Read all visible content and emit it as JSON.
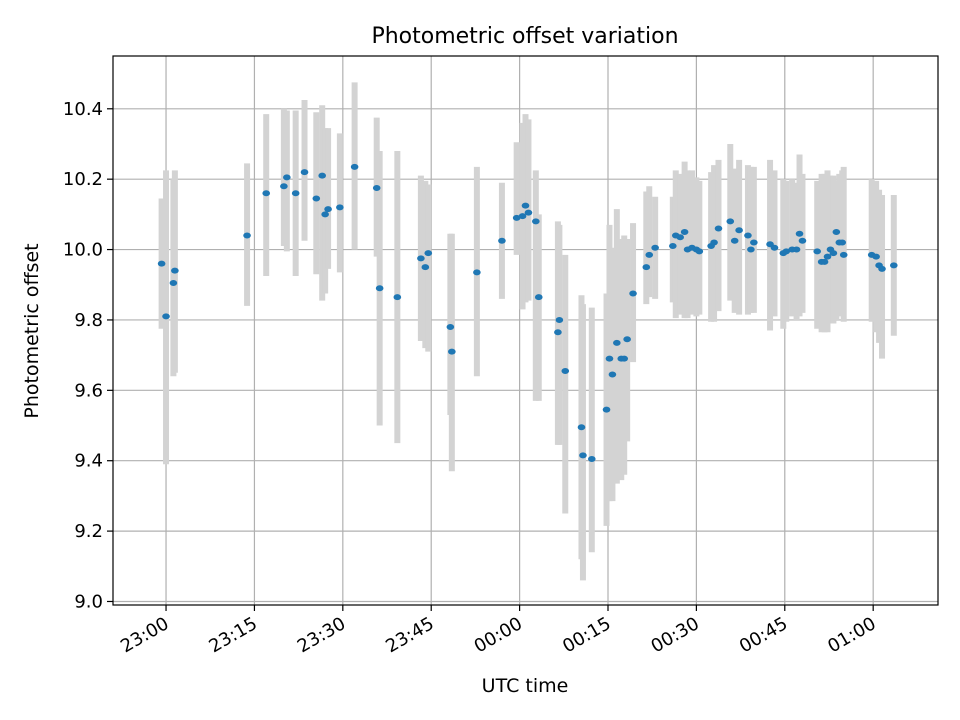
{
  "chart_data": {
    "type": "scatter",
    "title": "Photometric offset variation",
    "xlabel": "UTC time",
    "ylabel": "Photometric offset",
    "ylim": [
      8.99,
      10.55
    ],
    "xlim": [
      "22:51",
      "01:11"
    ],
    "grid": true,
    "x_ticks": [
      "23:00",
      "23:15",
      "23:30",
      "23:45",
      "00:00",
      "00:15",
      "00:30",
      "00:45",
      "01:00"
    ],
    "y_ticks": [
      9.0,
      9.2,
      9.4,
      9.6,
      9.8,
      10.0,
      10.2,
      10.4
    ],
    "point_color": "#1f77b4",
    "errorbar_color": "#d3d3d3",
    "series": [
      {
        "x": [
          "22:59:15",
          "23:00:00",
          "23:01:15",
          "23:01:30",
          "23:13:45",
          "23:17:00",
          "23:20:00",
          "23:20:30",
          "23:22:00",
          "23:23:30",
          "23:25:30",
          "23:26:30",
          "23:27:00",
          "23:27:30",
          "23:29:30",
          "23:32:00",
          "23:35:45",
          "23:36:15",
          "23:39:15",
          "23:43:15",
          "23:44:00",
          "23:44:30",
          "23:48:15",
          "23:48:30",
          "23:52:45",
          "23:57:00",
          "23:59:30",
          "00:00:30",
          "00:01:00",
          "00:01:30",
          "00:02:45",
          "00:03:15",
          "00:06:30",
          "00:06:45",
          "00:07:45",
          "00:10:30",
          "00:10:45",
          "00:12:15",
          "00:14:45",
          "00:15:15",
          "00:15:45",
          "00:16:30",
          "00:17:15",
          "00:17:45",
          "00:18:15",
          "00:19:15",
          "00:21:30",
          "00:22:00",
          "00:23:00",
          "00:26:00",
          "00:26:30",
          "00:27:15",
          "00:28:00",
          "00:28:30",
          "00:29:15",
          "00:30:00",
          "00:30:30",
          "00:32:30",
          "00:33:00",
          "00:33:45",
          "00:35:45",
          "00:36:30",
          "00:37:15",
          "00:38:45",
          "00:39:15",
          "00:39:45",
          "00:42:30",
          "00:43:15",
          "00:44:45",
          "00:45:15",
          "00:46:15",
          "00:47:00",
          "00:47:30",
          "00:48:00",
          "00:50:30",
          "00:51:15",
          "00:51:45",
          "00:52:15",
          "00:52:45",
          "00:53:15",
          "00:53:45",
          "00:54:15",
          "00:54:45",
          "00:55:00",
          "00:59:45",
          "01:00:30",
          "01:01:00",
          "01:01:30",
          "01:03:30"
        ],
        "y": [
          9.96,
          9.81,
          9.905,
          9.94,
          10.04,
          10.16,
          10.18,
          10.205,
          10.16,
          10.22,
          10.145,
          10.21,
          10.1,
          10.115,
          10.12,
          10.235,
          10.175,
          9.89,
          9.865,
          9.975,
          9.95,
          9.99,
          9.78,
          9.71,
          9.935,
          10.025,
          10.09,
          10.095,
          10.125,
          10.105,
          10.08,
          9.865,
          9.765,
          9.8,
          9.655,
          9.495,
          9.415,
          9.405,
          9.545,
          9.69,
          9.645,
          9.735,
          9.69,
          9.69,
          9.745,
          9.875,
          9.95,
          9.985,
          10.005,
          10.01,
          10.04,
          10.035,
          10.05,
          10.0,
          10.005,
          10.0,
          9.995,
          10.01,
          10.02,
          10.06,
          10.08,
          10.025,
          10.055,
          10.04,
          10.0,
          10.02,
          10.015,
          10.005,
          9.99,
          9.995,
          10.0,
          10.0,
          10.045,
          10.025,
          9.995,
          9.965,
          9.965,
          9.98,
          10.0,
          9.99,
          10.05,
          10.02,
          10.02,
          9.985,
          9.985,
          9.98,
          9.955,
          9.945,
          9.955
        ],
        "yerr_low": [
          9.775,
          9.39,
          9.64,
          9.65,
          9.84,
          9.925,
          10.01,
          9.995,
          9.925,
          10.025,
          9.93,
          9.855,
          9.875,
          9.945,
          9.935,
          10.0,
          9.98,
          9.5,
          9.45,
          9.74,
          9.72,
          9.71,
          9.53,
          9.37,
          9.64,
          9.86,
          9.985,
          9.83,
          9.85,
          9.855,
          9.57,
          9.57,
          9.445,
          9.445,
          9.25,
          9.12,
          9.06,
          9.14,
          9.215,
          9.285,
          9.285,
          9.335,
          9.345,
          9.36,
          9.455,
          9.68,
          9.845,
          9.865,
          9.86,
          9.85,
          9.805,
          9.815,
          9.805,
          9.805,
          9.815,
          9.81,
          9.815,
          9.795,
          9.795,
          9.825,
          9.855,
          9.82,
          9.815,
          9.815,
          9.82,
          9.82,
          9.77,
          9.81,
          9.775,
          9.795,
          9.81,
          9.8,
          9.81,
          9.82,
          9.775,
          9.765,
          9.765,
          9.765,
          9.79,
          9.79,
          9.8,
          9.81,
          9.825,
          9.795,
          9.795,
          9.765,
          9.735,
          9.69,
          9.755
        ],
        "yerr_high": [
          10.145,
          10.225,
          10.2,
          10.225,
          10.245,
          10.385,
          10.4,
          10.395,
          10.395,
          10.425,
          10.39,
          10.41,
          10.345,
          10.345,
          10.33,
          10.475,
          10.375,
          10.28,
          10.28,
          10.21,
          10.195,
          10.185,
          10.045,
          10.045,
          10.235,
          10.19,
          10.305,
          10.36,
          10.385,
          10.37,
          10.225,
          10.1,
          10.08,
          10.07,
          9.985,
          9.87,
          9.845,
          9.835,
          9.875,
          10.07,
          10.005,
          10.115,
          10.03,
          10.04,
          10.03,
          10.075,
          10.165,
          10.18,
          10.15,
          10.15,
          10.225,
          10.215,
          10.25,
          10.225,
          10.225,
          10.205,
          10.195,
          10.22,
          10.24,
          10.255,
          10.3,
          10.23,
          10.255,
          10.24,
          10.235,
          10.235,
          10.255,
          10.225,
          10.2,
          10.195,
          10.2,
          10.19,
          10.27,
          10.215,
          10.195,
          10.215,
          10.215,
          10.225,
          10.21,
          10.21,
          10.195,
          10.215,
          10.225,
          10.235,
          10.2,
          10.195,
          10.17,
          10.155,
          10.155
        ]
      }
    ]
  }
}
